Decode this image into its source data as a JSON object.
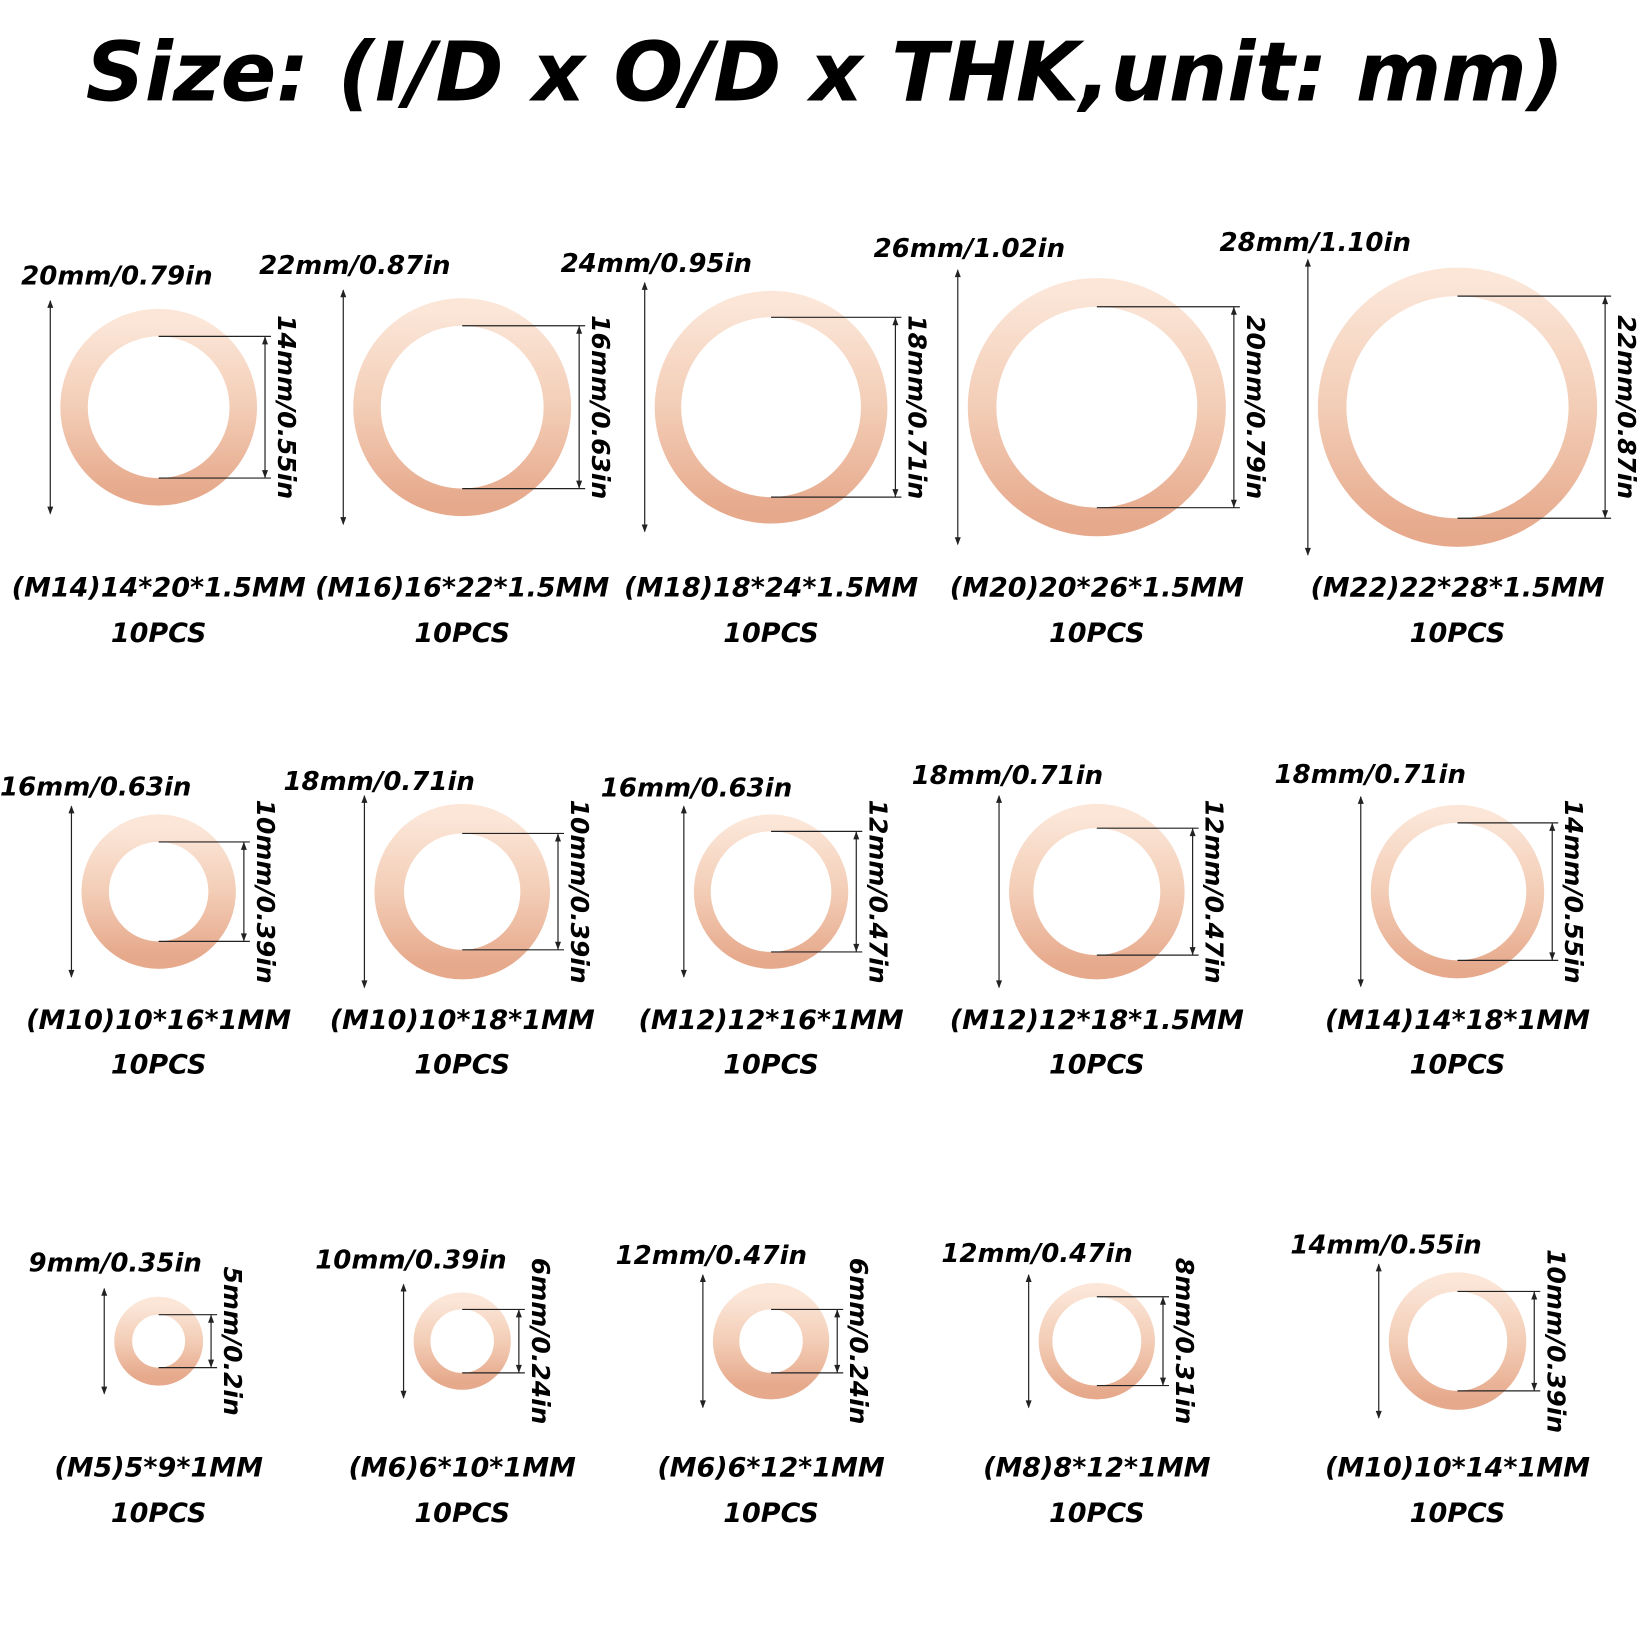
{
  "title": "Size: (I/D x O/D x THK,unit: mm)",
  "items": [
    {
      "od": "20mm/0.79in",
      "id": "14mm/0.55in",
      "spec": "(M14)14*20*1.5MM",
      "qty": "10PCS"
    },
    {
      "od": "22mm/0.87in",
      "id": "16mm/0.63in",
      "spec": "(M16)16*22*1.5MM",
      "qty": "10PCS"
    },
    {
      "od": "24mm/0.95in",
      "id": "18mm/0.71in",
      "spec": "(M18)18*24*1.5MM",
      "qty": "10PCS"
    },
    {
      "od": "26mm/1.02in",
      "id": "20mm/0.79in",
      "spec": "(M20)20*26*1.5MM",
      "qty": "10PCS"
    },
    {
      "od": "28mm/1.10in",
      "id": "22mm/0.87in",
      "spec": "(M22)22*28*1.5MM",
      "qty": "10PCS"
    },
    {
      "od": "16mm/0.63in",
      "id": "10mm/0.39in",
      "spec": "(M10)10*16*1MM",
      "qty": "10PCS"
    },
    {
      "od": "18mm/0.71in",
      "id": "10mm/0.39in",
      "spec": "(M10)10*18*1MM",
      "qty": "10PCS"
    },
    {
      "od": "16mm/0.63in",
      "id": "12mm/0.47in",
      "spec": "(M12)12*16*1MM",
      "qty": "10PCS"
    },
    {
      "od": "18mm/0.71in",
      "id": "12mm/0.47in",
      "spec": "(M12)12*18*1.5MM",
      "qty": "10PCS"
    },
    {
      "od": "18mm/0.71in",
      "id": "14mm/0.55in",
      "spec": "(M14)14*18*1MM",
      "qty": "10PCS"
    },
    {
      "od": "9mm/0.35in",
      "id": "5mm/0.2in",
      "spec": "(M5)5*9*1MM",
      "qty": "10PCS"
    },
    {
      "od": "10mm/0.39in",
      "id": "6mm/0.24in",
      "spec": "(M6)6*10*1MM",
      "qty": "10PCS"
    },
    {
      "od": "12mm/0.47in",
      "id": "6mm/0.24in",
      "spec": "(M6)6*12*1MM",
      "qty": "10PCS"
    },
    {
      "od": "12mm/0.47in",
      "id": "8mm/0.31in",
      "spec": "(M8)8*12*1MM",
      "qty": "10PCS"
    },
    {
      "od": "14mm/0.55in",
      "id": "10mm/0.39in",
      "spec": "(M10)10*14*1MM",
      "qty": "10PCS"
    }
  ]
}
